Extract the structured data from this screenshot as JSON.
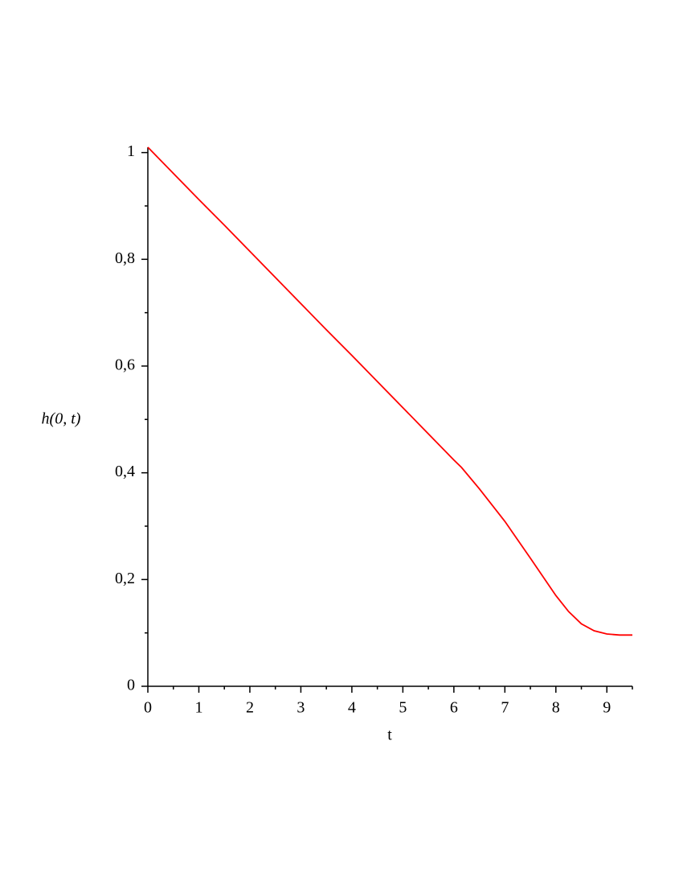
{
  "chart_data": {
    "type": "line",
    "xlabel": "t",
    "ylabel": "h(0, t)",
    "x": [
      0,
      0.5,
      1,
      1.5,
      2,
      2.5,
      3,
      3.5,
      4,
      4.5,
      5,
      5.5,
      6,
      6.15,
      6.5,
      7,
      7.5,
      8,
      8.25,
      8.5,
      8.75,
      9,
      9.25,
      9.5
    ],
    "series": [
      {
        "color": "#ff0000",
        "values": [
          1.01,
          0.961,
          0.912,
          0.864,
          0.815,
          0.766,
          0.717,
          0.668,
          0.62,
          0.571,
          0.522,
          0.473,
          0.424,
          0.41,
          0.37,
          0.309,
          0.24,
          0.17,
          0.14,
          0.117,
          0.104,
          0.098,
          0.096,
          0.096
        ]
      }
    ],
    "xlim": [
      0,
      9.5
    ],
    "ylim": [
      0,
      1.01
    ],
    "xticks": [
      0,
      1,
      2,
      3,
      4,
      5,
      6,
      7,
      8,
      9
    ],
    "xminorticks": [
      0.5,
      1.5,
      2.5,
      3.5,
      4.5,
      5.5,
      6.5,
      7.5,
      8.5,
      9.5
    ],
    "yticks": [
      0,
      {
        "value": 0.2,
        "label": "0,2"
      },
      {
        "value": 0.4,
        "label": "0,4"
      },
      {
        "value": 0.6,
        "label": "0,6"
      },
      {
        "value": 0.8,
        "label": "0,8"
      },
      1
    ],
    "yminorticks": [
      0.1,
      0.3,
      0.5,
      0.7,
      0.9
    ]
  }
}
